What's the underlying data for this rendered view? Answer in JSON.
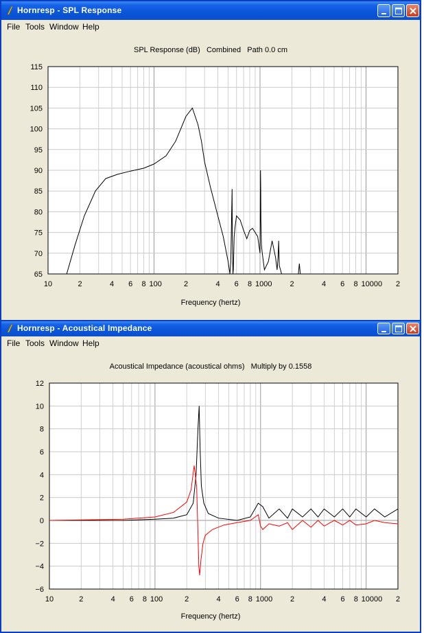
{
  "window1": {
    "title": "Hornresp - SPL Response",
    "menu": [
      "File",
      "Tools",
      "Window",
      "Help"
    ],
    "chart_title": "SPL Response (dB)   Combined   Path 0.0 cm"
  },
  "window2": {
    "title": "Hornresp - Acoustical Impedance",
    "menu": [
      "File",
      "Tools",
      "Window",
      "Help"
    ],
    "chart_title": "Acoustical Impedance (acoustical ohms)   Multiply by 0.1558"
  },
  "icons": {
    "app": "hornresp-icon",
    "minimize": "minimize-icon",
    "maximize": "maximize-icon",
    "close": "close-icon"
  },
  "colors": {
    "titlebar": "#0a55d8",
    "trace_black": "#000000",
    "trace_red": "#ff0000",
    "grid": "#c8c8c8"
  },
  "chart_data": [
    {
      "type": "line",
      "title": "SPL Response (dB)   Combined   Path 0.0 cm",
      "xlabel": "Frequency (hertz)",
      "ylabel": "",
      "xscale": "log",
      "xlim": [
        10,
        20000
      ],
      "ylim": [
        65,
        115
      ],
      "x_tick_labels": [
        "10",
        "2",
        "4",
        "6",
        "8",
        "100",
        "2",
        "4",
        "6",
        "8",
        "1000",
        "2",
        "4",
        "6",
        "8",
        "10000",
        "2"
      ],
      "y_ticks": [
        65,
        70,
        75,
        80,
        85,
        90,
        95,
        100,
        105,
        110,
        115
      ],
      "grid": true,
      "series": [
        {
          "color": "#000000",
          "x": [
            15,
            18,
            22,
            28,
            35,
            45,
            60,
            80,
            100,
            130,
            160,
            200,
            230,
            260,
            280,
            300,
            340,
            400,
            450,
            500,
            520,
            530,
            540,
            545,
            548,
            550,
            555,
            560,
            565,
            570,
            580,
            600,
            650,
            700,
            750,
            800,
            850,
            900,
            950,
            1000,
            1005,
            1010,
            1015,
            1020,
            1030,
            1050,
            1100,
            1200,
            1300,
            1400,
            1450,
            1480,
            1500,
            1520,
            1600,
            1700,
            2000,
            2200,
            2300,
            2350,
            2400
          ],
          "y": [
            65,
            72,
            79,
            85,
            88,
            89,
            89.8,
            90.5,
            91.5,
            93.5,
            97,
            103,
            105,
            101,
            97,
            92,
            86,
            79,
            74,
            68,
            65,
            68,
            80,
            85.5,
            74,
            72,
            65,
            66,
            70,
            74,
            76,
            79,
            78,
            75.5,
            73.5,
            75.5,
            76,
            75,
            74,
            70,
            78,
            90,
            86,
            78,
            72,
            70,
            66,
            68,
            73,
            69,
            66,
            69,
            73,
            67,
            65,
            65,
            65,
            65,
            65,
            67.5,
            65
          ]
        }
      ]
    },
    {
      "type": "line",
      "title": "Acoustical Impedance (acoustical ohms)   Multiply by 0.1558",
      "xlabel": "Frequency (hertz)",
      "ylabel": "",
      "xscale": "log",
      "xlim": [
        10,
        20000
      ],
      "ylim": [
        -6,
        12
      ],
      "x_tick_labels": [
        "10",
        "2",
        "4",
        "6",
        "8",
        "100",
        "2",
        "4",
        "6",
        "8",
        "1000",
        "2",
        "4",
        "6",
        "8",
        "10000",
        "2"
      ],
      "y_ticks": [
        -6,
        -4,
        -2,
        0,
        2,
        4,
        6,
        8,
        10,
        12
      ],
      "grid": true,
      "series": [
        {
          "color": "#000000",
          "x": [
            10,
            50,
            100,
            150,
            200,
            230,
            245,
            255,
            262,
            265,
            268,
            275,
            290,
            320,
            400,
            600,
            800,
            950,
            1050,
            1200,
            1500,
            1800,
            2000,
            2500,
            3000,
            3500,
            4000,
            5000,
            6000,
            7000,
            8000,
            10000,
            12000,
            15000,
            20000
          ],
          "y": [
            0,
            0,
            0.1,
            0.2,
            0.5,
            1.5,
            4,
            8,
            10,
            8,
            6,
            3,
            1.5,
            0.6,
            0.2,
            0,
            0.3,
            1.5,
            1.2,
            0.2,
            1.0,
            0.2,
            1.0,
            0.3,
            1.0,
            0.3,
            1.0,
            0.3,
            1.0,
            0.3,
            1.0,
            0.3,
            1.0,
            0.3,
            1.0
          ]
        },
        {
          "color": "#ff0000",
          "x": [
            10,
            50,
            100,
            150,
            200,
            220,
            235,
            248,
            255,
            260,
            265,
            272,
            285,
            300,
            350,
            450,
            600,
            800,
            950,
            1000,
            1050,
            1200,
            1500,
            1800,
            2000,
            2500,
            3000,
            3500,
            4000,
            5000,
            6000,
            7000,
            8000,
            10000,
            12000,
            15000,
            20000
          ],
          "y": [
            0,
            0.1,
            0.3,
            0.7,
            1.6,
            2.7,
            4.8,
            3,
            -1,
            -4,
            -4.8,
            -3.5,
            -2,
            -1.3,
            -0.8,
            -0.4,
            -0.2,
            0,
            0.5,
            -0.5,
            -0.8,
            -0.3,
            -0.5,
            -0.2,
            -0.8,
            0,
            -0.6,
            0,
            -0.5,
            0,
            -0.4,
            0,
            -0.4,
            -0.3,
            0,
            -0.2,
            -0.3
          ]
        }
      ]
    }
  ]
}
